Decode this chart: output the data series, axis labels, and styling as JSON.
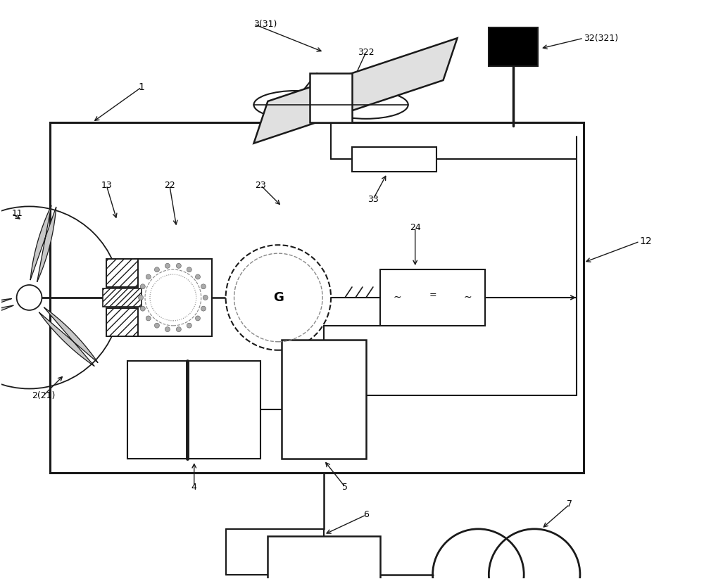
{
  "bg": "#ffffff",
  "lc": "#1a1a1a",
  "labels": {
    "3_31": "3(31)",
    "322": "322",
    "32_321": "32(321)",
    "1": "1",
    "11": "11",
    "12": "12",
    "13": "13",
    "22": "22",
    "23": "23",
    "24": "24",
    "33": "33",
    "4": "4",
    "5": "5",
    "6": "6",
    "7": "7",
    "2_21": "2(21)"
  }
}
